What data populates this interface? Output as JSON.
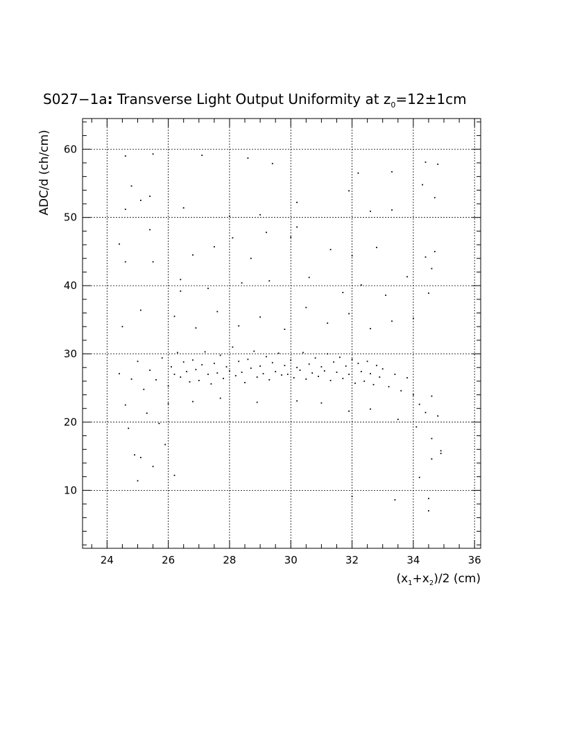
{
  "chart_data": {
    "type": "scatter",
    "title": {
      "prefix": "S027−1a",
      "colon": ":",
      "main": " Transverse Light Output Uniformity at z",
      "sub": "0",
      "tail": "=12±1cm"
    },
    "ylabel": "ADC/d (ch/cm)",
    "xlabel": {
      "a": "(x",
      "s1": "1",
      "b": "+x",
      "s2": "2",
      "c": ")/2 (cm)"
    },
    "xlim": [
      23.2,
      36.2
    ],
    "ylim": [
      1.5,
      64.5
    ],
    "xticks": [
      {
        "value": 24,
        "label": "24"
      },
      {
        "value": 26,
        "label": "26"
      },
      {
        "value": 28,
        "label": "28"
      },
      {
        "value": 30,
        "label": "30"
      },
      {
        "value": 32,
        "label": "32"
      },
      {
        "value": 34,
        "label": "34"
      },
      {
        "value": 36,
        "label": "36"
      }
    ],
    "yticks": [
      {
        "value": 10,
        "label": "10"
      },
      {
        "value": 20,
        "label": "20"
      },
      {
        "value": 30,
        "label": "30"
      },
      {
        "value": 40,
        "label": "40"
      },
      {
        "value": 50,
        "label": "50"
      },
      {
        "value": 60,
        "label": "60"
      }
    ],
    "grid": true,
    "points": [
      [
        24.4,
        27.1
      ],
      [
        24.6,
        22.5
      ],
      [
        24.8,
        26.3
      ],
      [
        25.0,
        28.9
      ],
      [
        25.2,
        24.8
      ],
      [
        25.4,
        27.6
      ],
      [
        25.6,
        26.2
      ],
      [
        25.8,
        29.4
      ],
      [
        26.0,
        25.3
      ],
      [
        26.1,
        28.1
      ],
      [
        26.2,
        27.0
      ],
      [
        26.3,
        30.2
      ],
      [
        26.4,
        26.6
      ],
      [
        26.5,
        28.8
      ],
      [
        26.6,
        27.4
      ],
      [
        26.7,
        25.9
      ],
      [
        26.8,
        29.1
      ],
      [
        26.9,
        27.7
      ],
      [
        27.0,
        26.1
      ],
      [
        27.1,
        28.4
      ],
      [
        27.2,
        30.3
      ],
      [
        27.3,
        27.0
      ],
      [
        27.4,
        25.6
      ],
      [
        27.5,
        28.6
      ],
      [
        27.6,
        27.2
      ],
      [
        27.7,
        29.8
      ],
      [
        27.8,
        26.4
      ],
      [
        27.9,
        28.1
      ],
      [
        28.0,
        27.5
      ],
      [
        28.1,
        31.0
      ],
      [
        28.2,
        26.8
      ],
      [
        28.3,
        28.9
      ],
      [
        28.4,
        27.3
      ],
      [
        28.5,
        25.8
      ],
      [
        28.6,
        29.2
      ],
      [
        28.7,
        27.9
      ],
      [
        28.8,
        30.4
      ],
      [
        28.9,
        26.6
      ],
      [
        29.0,
        28.2
      ],
      [
        29.1,
        27.1
      ],
      [
        29.2,
        29.6
      ],
      [
        29.3,
        26.2
      ],
      [
        29.4,
        28.7
      ],
      [
        29.5,
        27.4
      ],
      [
        29.6,
        30.1
      ],
      [
        29.7,
        26.9
      ],
      [
        29.8,
        28.3
      ],
      [
        29.9,
        27.0
      ],
      [
        30.0,
        29.1
      ],
      [
        30.1,
        26.5
      ],
      [
        30.2,
        28.0
      ],
      [
        30.3,
        27.6
      ],
      [
        30.4,
        30.2
      ],
      [
        30.5,
        26.3
      ],
      [
        30.6,
        28.5
      ],
      [
        30.7,
        27.2
      ],
      [
        30.8,
        29.4
      ],
      [
        30.9,
        26.7
      ],
      [
        31.0,
        28.1
      ],
      [
        31.1,
        27.5
      ],
      [
        31.2,
        30.0
      ],
      [
        31.3,
        26.1
      ],
      [
        31.4,
        28.8
      ],
      [
        31.5,
        27.3
      ],
      [
        31.6,
        29.5
      ],
      [
        31.7,
        26.4
      ],
      [
        31.8,
        28.2
      ],
      [
        31.9,
        27.0
      ],
      [
        32.0,
        29.2
      ],
      [
        32.1,
        25.7
      ],
      [
        32.2,
        28.6
      ],
      [
        32.3,
        27.4
      ],
      [
        32.4,
        26.0
      ],
      [
        32.5,
        28.9
      ],
      [
        32.6,
        27.1
      ],
      [
        32.7,
        25.5
      ],
      [
        32.8,
        28.3
      ],
      [
        32.9,
        26.6
      ],
      [
        33.0,
        27.8
      ],
      [
        33.2,
        25.2
      ],
      [
        33.4,
        27.0
      ],
      [
        33.6,
        24.6
      ],
      [
        33.8,
        26.5
      ],
      [
        34.0,
        24.0
      ],
      [
        34.2,
        22.6
      ],
      [
        34.4,
        21.4
      ],
      [
        34.6,
        23.8
      ],
      [
        34.8,
        20.9
      ],
      [
        26.2,
        35.5
      ],
      [
        26.9,
        33.8
      ],
      [
        27.6,
        36.2
      ],
      [
        28.3,
        34.1
      ],
      [
        29.0,
        35.4
      ],
      [
        29.8,
        33.6
      ],
      [
        30.5,
        36.8
      ],
      [
        31.2,
        34.5
      ],
      [
        31.9,
        35.9
      ],
      [
        32.6,
        33.7
      ],
      [
        33.3,
        34.8
      ],
      [
        34.0,
        35.2
      ],
      [
        25.1,
        36.4
      ],
      [
        24.5,
        34.0
      ],
      [
        25.3,
        21.3
      ],
      [
        26.0,
        22.7
      ],
      [
        26.8,
        23.0
      ],
      [
        27.7,
        23.5
      ],
      [
        28.9,
        22.9
      ],
      [
        30.2,
        23.1
      ],
      [
        31.0,
        22.8
      ],
      [
        31.9,
        21.6
      ],
      [
        32.6,
        21.9
      ],
      [
        33.5,
        20.4
      ],
      [
        34.1,
        19.3
      ],
      [
        34.6,
        17.6
      ],
      [
        24.7,
        19.1
      ],
      [
        25.7,
        19.8
      ],
      [
        25.9,
        16.7
      ],
      [
        25.5,
        13.5
      ],
      [
        24.9,
        15.2
      ],
      [
        34.9,
        15.4
      ],
      [
        34.6,
        14.6
      ],
      [
        24.6,
        43.5
      ],
      [
        24.4,
        46.1
      ],
      [
        25.4,
        48.2
      ],
      [
        25.5,
        43.5
      ],
      [
        26.4,
        39.2
      ],
      [
        26.8,
        44.5
      ],
      [
        27.5,
        45.7
      ],
      [
        28.1,
        47.0
      ],
      [
        28.7,
        44.0
      ],
      [
        29.2,
        47.8
      ],
      [
        30.0,
        47.1
      ],
      [
        30.2,
        48.6
      ],
      [
        30.6,
        41.2
      ],
      [
        31.3,
        45.3
      ],
      [
        32.0,
        44.4
      ],
      [
        32.8,
        45.6
      ],
      [
        33.8,
        41.3
      ],
      [
        34.4,
        44.2
      ],
      [
        34.7,
        45.0
      ],
      [
        34.6,
        42.5
      ],
      [
        26.4,
        40.9
      ],
      [
        27.3,
        39.6
      ],
      [
        28.4,
        40.4
      ],
      [
        29.3,
        40.7
      ],
      [
        31.7,
        39.0
      ],
      [
        32.3,
        40.1
      ],
      [
        33.1,
        38.6
      ],
      [
        34.5,
        38.9
      ],
      [
        24.6,
        51.2
      ],
      [
        24.8,
        54.6
      ],
      [
        25.1,
        52.5
      ],
      [
        25.4,
        53.1
      ],
      [
        26.5,
        51.4
      ],
      [
        28.0,
        50.2
      ],
      [
        29.0,
        50.4
      ],
      [
        30.2,
        52.2
      ],
      [
        31.9,
        53.9
      ],
      [
        32.6,
        50.9
      ],
      [
        33.3,
        51.1
      ],
      [
        34.3,
        54.8
      ],
      [
        34.7,
        52.9
      ],
      [
        24.6,
        59.0
      ],
      [
        25.5,
        59.3
      ],
      [
        27.1,
        59.1
      ],
      [
        28.6,
        58.7
      ],
      [
        29.4,
        57.9
      ],
      [
        32.2,
        56.5
      ],
      [
        33.3,
        56.7
      ],
      [
        34.4,
        58.1
      ],
      [
        34.8,
        57.8
      ],
      [
        25.0,
        11.4
      ],
      [
        25.1,
        14.8
      ],
      [
        26.2,
        12.2
      ],
      [
        32.0,
        9.1
      ],
      [
        33.4,
        8.6
      ],
      [
        34.2,
        11.9
      ],
      [
        34.5,
        8.8
      ],
      [
        34.5,
        7.0
      ],
      [
        34.9,
        15.8
      ]
    ]
  }
}
